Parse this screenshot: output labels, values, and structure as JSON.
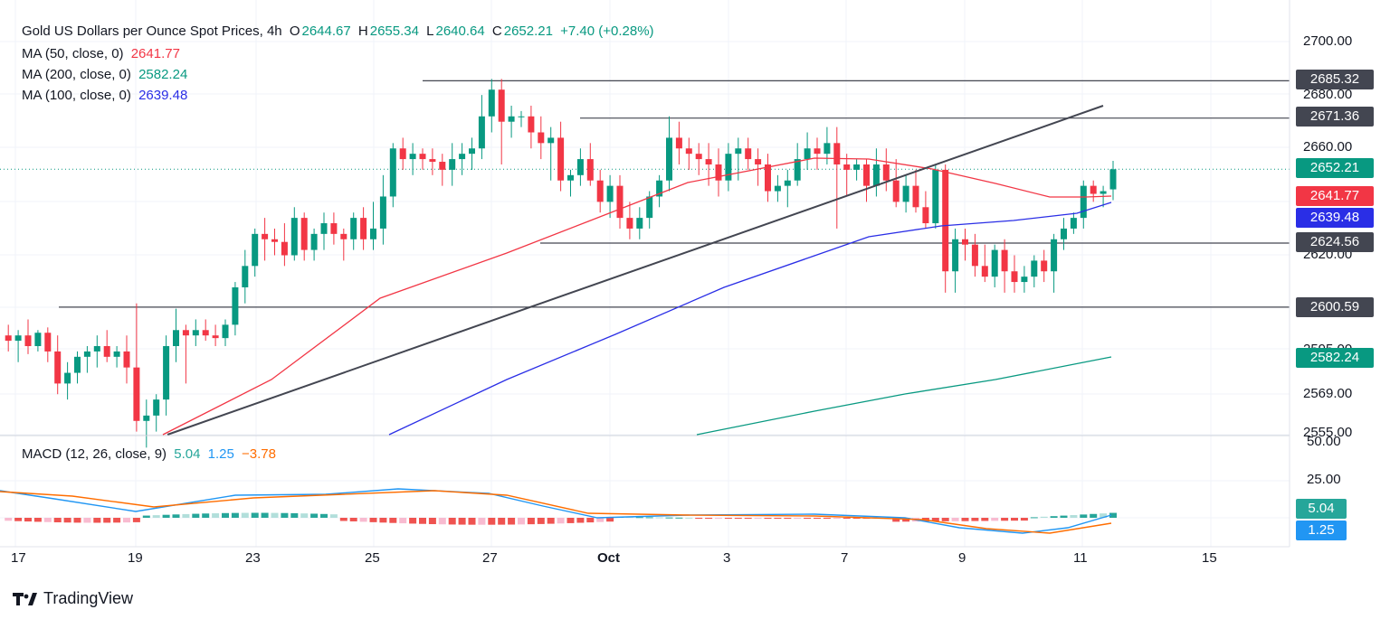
{
  "header": {
    "symbol_title": "Gold US Dollars per Ounce Spot Prices, 4h",
    "open_key": "O",
    "open_value": "2644.67",
    "high_key": "H",
    "high_value": "2655.34",
    "low_key": "L",
    "low_value": "2640.64",
    "close_key": "C",
    "close_value": "2652.21",
    "change": "+7.40 (+0.28%)"
  },
  "indicators": {
    "ma50": {
      "label": "MA (50, close, 0)",
      "value": "2641.77",
      "color": "#f23645"
    },
    "ma200": {
      "label": "MA (200, close, 0)",
      "value": "2582.24",
      "color": "#089981"
    },
    "ma100": {
      "label": "MA (100, close, 0)",
      "value": "2639.48",
      "color": "#2a2ee6"
    }
  },
  "macd": {
    "label": "MACD (12, 26, close, 9)",
    "histogram_value": "5.04",
    "macd_value": "1.25",
    "signal_value": "−3.78",
    "histogram_color": "#26a69a",
    "macd_color": "#2196f3",
    "signal_color": "#ff6d00",
    "axis_ticks": [
      "50.00",
      "25.00"
    ]
  },
  "price_axis": {
    "ticks": [
      "2700.00",
      "2680.00",
      "2660.00",
      "2620.00",
      "2595.00",
      "2569.00",
      "2555.00"
    ],
    "tags": [
      {
        "value": "2685.32",
        "color": "#434651"
      },
      {
        "value": "2671.36",
        "color": "#434651"
      },
      {
        "value": "2652.21",
        "color": "#089981"
      },
      {
        "value": "2641.77",
        "color": "#f23645"
      },
      {
        "value": "2639.48",
        "color": "#2a2ee6"
      },
      {
        "value": "2624.56",
        "color": "#434651"
      },
      {
        "value": "2600.59",
        "color": "#434651"
      },
      {
        "value": "2582.24",
        "color": "#089981"
      }
    ],
    "macd_tags": [
      {
        "value": "5.04",
        "color": "#26a69a"
      },
      {
        "value": "1.25",
        "color": "#2196f3"
      }
    ]
  },
  "time_axis": {
    "labels": [
      "17",
      "19",
      "23",
      "25",
      "27",
      "Oct",
      "3",
      "7",
      "9",
      "11",
      "15"
    ]
  },
  "brand": {
    "name": "TradingView"
  },
  "chart_data": {
    "type": "candlestick",
    "title": "Gold US Dollars per Ounce Spot Prices, 4h",
    "up_color": "#089981",
    "down_color": "#f23645",
    "ylim": [
      2550,
      2710
    ],
    "horizontal_levels": [
      2685.32,
      2671.36,
      2624.56,
      2600.59
    ],
    "trendline": {
      "from": [
        "Sep 19",
        2553
      ],
      "to": [
        "Oct 11",
        2675
      ]
    },
    "last_price": 2652.21,
    "candles": [
      [
        2590,
        2594,
        2584,
        2588
      ],
      [
        2588,
        2592,
        2580,
        2590
      ],
      [
        2590,
        2596,
        2583,
        2586
      ],
      [
        2586,
        2592,
        2584,
        2591
      ],
      [
        2591,
        2593,
        2580,
        2584
      ],
      [
        2584,
        2590,
        2568,
        2572
      ],
      [
        2572,
        2580,
        2566,
        2576
      ],
      [
        2576,
        2584,
        2572,
        2582
      ],
      [
        2582,
        2586,
        2576,
        2584
      ],
      [
        2584,
        2590,
        2578,
        2586
      ],
      [
        2586,
        2592,
        2580,
        2582
      ],
      [
        2582,
        2586,
        2578,
        2584
      ],
      [
        2584,
        2590,
        2572,
        2578
      ],
      [
        2578,
        2602,
        2554,
        2558
      ],
      [
        2558,
        2566,
        2548,
        2560
      ],
      [
        2560,
        2568,
        2554,
        2566
      ],
      [
        2566,
        2590,
        2560,
        2586
      ],
      [
        2586,
        2600,
        2580,
        2592
      ],
      [
        2592,
        2594,
        2572,
        2590
      ],
      [
        2590,
        2596,
        2586,
        2592
      ],
      [
        2592,
        2596,
        2588,
        2590
      ],
      [
        2590,
        2594,
        2586,
        2589
      ],
      [
        2589,
        2596,
        2586,
        2594
      ],
      [
        2594,
        2610,
        2590,
        2608
      ],
      [
        2608,
        2622,
        2602,
        2616
      ],
      [
        2616,
        2630,
        2612,
        2628
      ],
      [
        2628,
        2634,
        2618,
        2626
      ],
      [
        2626,
        2630,
        2620,
        2625
      ],
      [
        2625,
        2632,
        2616,
        2620
      ],
      [
        2620,
        2638,
        2618,
        2634
      ],
      [
        2634,
        2636,
        2618,
        2622
      ],
      [
        2622,
        2630,
        2618,
        2628
      ],
      [
        2628,
        2636,
        2622,
        2632
      ],
      [
        2632,
        2636,
        2624,
        2628
      ],
      [
        2628,
        2630,
        2618,
        2626
      ],
      [
        2626,
        2636,
        2622,
        2634
      ],
      [
        2634,
        2638,
        2622,
        2626
      ],
      [
        2626,
        2640,
        2622,
        2630
      ],
      [
        2630,
        2650,
        2624,
        2642
      ],
      [
        2642,
        2662,
        2638,
        2660
      ],
      [
        2660,
        2664,
        2652,
        2656
      ],
      [
        2656,
        2662,
        2650,
        2658
      ],
      [
        2658,
        2660,
        2652,
        2656
      ],
      [
        2656,
        2660,
        2650,
        2655
      ],
      [
        2655,
        2658,
        2646,
        2652
      ],
      [
        2652,
        2662,
        2646,
        2656
      ],
      [
        2656,
        2662,
        2650,
        2658
      ],
      [
        2658,
        2664,
        2652,
        2660
      ],
      [
        2660,
        2680,
        2656,
        2672
      ],
      [
        2672,
        2686,
        2666,
        2682
      ],
      [
        2682,
        2686,
        2654,
        2670
      ],
      [
        2670,
        2676,
        2664,
        2672
      ],
      [
        2672,
        2674,
        2668,
        2672
      ],
      [
        2672,
        2676,
        2660,
        2666
      ],
      [
        2666,
        2672,
        2656,
        2662
      ],
      [
        2662,
        2668,
        2648,
        2664
      ],
      [
        2664,
        2670,
        2644,
        2648
      ],
      [
        2648,
        2652,
        2642,
        2650
      ],
      [
        2650,
        2660,
        2646,
        2656
      ],
      [
        2656,
        2662,
        2646,
        2648
      ],
      [
        2648,
        2652,
        2636,
        2640
      ],
      [
        2640,
        2650,
        2634,
        2646
      ],
      [
        2646,
        2650,
        2630,
        2634
      ],
      [
        2634,
        2640,
        2626,
        2630
      ],
      [
        2630,
        2638,
        2626,
        2634
      ],
      [
        2634,
        2644,
        2630,
        2642
      ],
      [
        2642,
        2650,
        2638,
        2648
      ],
      [
        2648,
        2672,
        2644,
        2664
      ],
      [
        2664,
        2670,
        2654,
        2660
      ],
      [
        2660,
        2664,
        2652,
        2658
      ],
      [
        2658,
        2662,
        2650,
        2656
      ],
      [
        2656,
        2662,
        2646,
        2654
      ],
      [
        2654,
        2660,
        2642,
        2648
      ],
      [
        2648,
        2662,
        2644,
        2658
      ],
      [
        2658,
        2664,
        2648,
        2660
      ],
      [
        2660,
        2664,
        2652,
        2656
      ],
      [
        2656,
        2660,
        2646,
        2654
      ],
      [
        2654,
        2658,
        2640,
        2644
      ],
      [
        2644,
        2650,
        2640,
        2646
      ],
      [
        2646,
        2652,
        2638,
        2648
      ],
      [
        2648,
        2662,
        2646,
        2656
      ],
      [
        2656,
        2666,
        2652,
        2660
      ],
      [
        2660,
        2664,
        2652,
        2658
      ],
      [
        2658,
        2668,
        2654,
        2662
      ],
      [
        2662,
        2668,
        2630,
        2654
      ],
      [
        2654,
        2658,
        2642,
        2652
      ],
      [
        2652,
        2656,
        2648,
        2654
      ],
      [
        2654,
        2656,
        2640,
        2646
      ],
      [
        2646,
        2660,
        2642,
        2654
      ],
      [
        2654,
        2660,
        2644,
        2648
      ],
      [
        2648,
        2656,
        2638,
        2640
      ],
      [
        2640,
        2650,
        2636,
        2646
      ],
      [
        2646,
        2652,
        2636,
        2638
      ],
      [
        2638,
        2644,
        2630,
        2632
      ],
      [
        2632,
        2654,
        2630,
        2652
      ],
      [
        2652,
        2654,
        2606,
        2614
      ],
      [
        2614,
        2630,
        2606,
        2626
      ],
      [
        2626,
        2630,
        2618,
        2624
      ],
      [
        2624,
        2628,
        2612,
        2616
      ],
      [
        2616,
        2624,
        2610,
        2612
      ],
      [
        2612,
        2624,
        2608,
        2622
      ],
      [
        2622,
        2626,
        2606,
        2614
      ],
      [
        2614,
        2620,
        2606,
        2610
      ],
      [
        2610,
        2616,
        2606,
        2612
      ],
      [
        2612,
        2620,
        2608,
        2618
      ],
      [
        2618,
        2622,
        2610,
        2614
      ],
      [
        2614,
        2628,
        2606,
        2626
      ],
      [
        2626,
        2634,
        2622,
        2630
      ],
      [
        2630,
        2636,
        2628,
        2634
      ],
      [
        2634,
        2648,
        2630,
        2646
      ],
      [
        2646,
        2648,
        2640,
        2643
      ],
      [
        2643,
        2646,
        2638,
        2644
      ],
      [
        2644.67,
        2655.34,
        2640.64,
        2652.21
      ]
    ]
  }
}
